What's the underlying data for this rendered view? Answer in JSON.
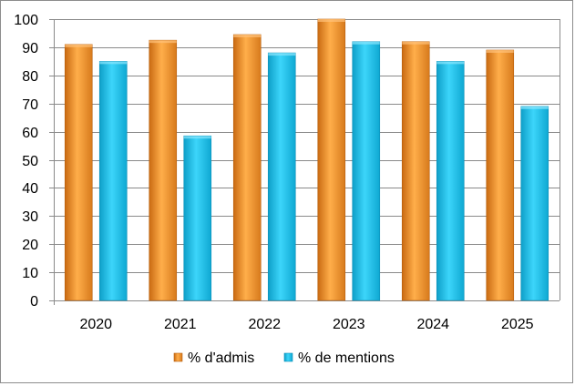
{
  "chart_data": {
    "type": "bar",
    "categories": [
      "2020",
      "2021",
      "2022",
      "2023",
      "2024",
      "2025"
    ],
    "series": [
      {
        "name": "% d'admis",
        "values": [
          91,
          92.5,
          94.5,
          100,
          92,
          89
        ],
        "color": "#f79a32"
      },
      {
        "name": "% de mentions",
        "values": [
          85,
          58.5,
          88,
          92,
          85,
          69
        ],
        "color": "#1fc3ec"
      }
    ],
    "y_ticks": [
      0,
      10,
      20,
      30,
      40,
      50,
      60,
      70,
      80,
      90,
      100
    ],
    "ylim": [
      0,
      100
    ],
    "grid": true,
    "legend_position": "bottom"
  }
}
